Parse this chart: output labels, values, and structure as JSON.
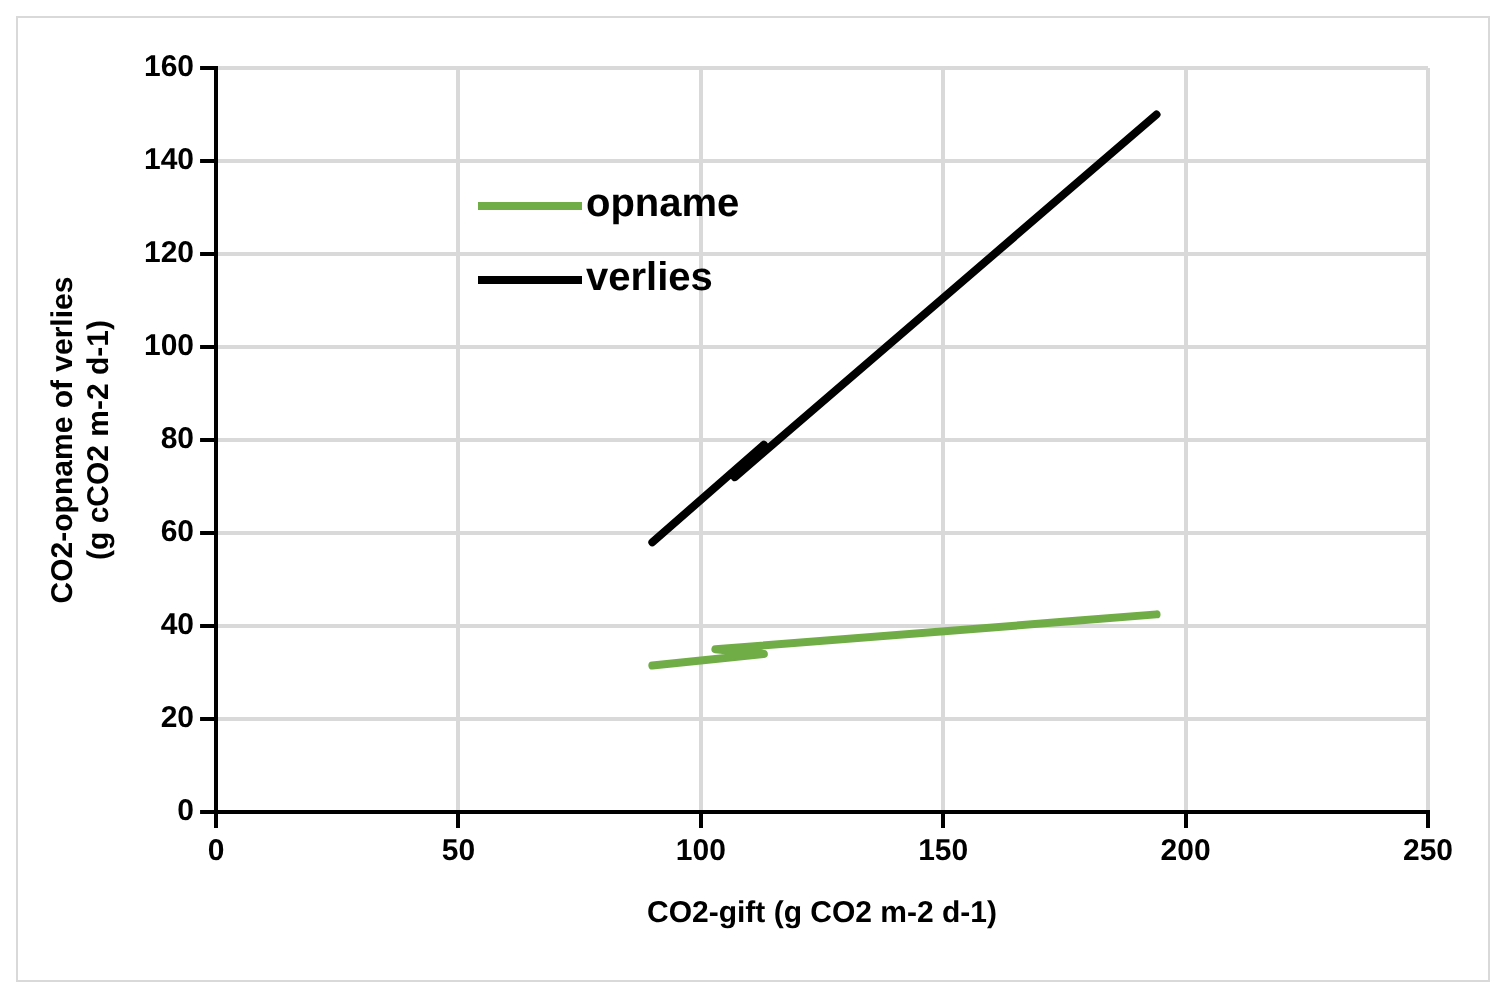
{
  "chart_data": {
    "type": "line",
    "xlabel": "CO2-gift (g CO2 m-2 d-1)",
    "ylabel": "CO2-opname of verlies\n(g cCO2 m-2 d-1)",
    "xlim": [
      0,
      250
    ],
    "xticks": [
      0,
      50,
      100,
      150,
      200,
      250
    ],
    "ylim": [
      0,
      160
    ],
    "yticks": [
      0,
      20,
      40,
      60,
      80,
      100,
      120,
      140,
      160
    ],
    "grid": true,
    "legend": "top left",
    "marker": "none",
    "line_style": "solid",
    "series": [
      {
        "name": "opname",
        "color": "#70ad47",
        "x": [
          90,
          113,
          103,
          176,
          194
        ],
        "values": [
          31.5,
          34,
          35,
          41,
          42.5
        ]
      },
      {
        "name": "verlies",
        "color": "#000000",
        "x": [
          90,
          113,
          107,
          194
        ],
        "values": [
          58,
          79,
          72,
          150
        ]
      }
    ]
  }
}
